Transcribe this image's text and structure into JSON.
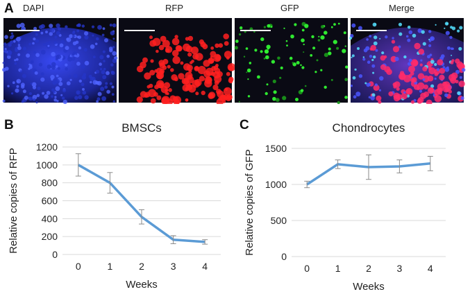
{
  "figure": {
    "panel_labels": [
      "A",
      "B",
      "C"
    ],
    "microscopy": {
      "channels": [
        {
          "label": "DAPI",
          "color": "#2a3dff"
        },
        {
          "label": "RFP",
          "color": "#ff1e1e"
        },
        {
          "label": "GFP",
          "color": "#22e022"
        },
        {
          "label": "Merge",
          "color": "#b04dd6"
        }
      ],
      "background": "#0a0a14"
    }
  },
  "chart_data": [
    {
      "type": "line",
      "title": "BMSCs",
      "xlabel": "Weeks",
      "ylabel": "Relative copies of RFP",
      "x": [
        0,
        1,
        2,
        3,
        4
      ],
      "series": [
        {
          "values": [
            1000,
            800,
            420,
            165,
            140
          ],
          "error": [
            125,
            115,
            80,
            45,
            25
          ]
        }
      ],
      "ylim": [
        0,
        1200
      ],
      "yticks": [
        0,
        200,
        400,
        600,
        800,
        1000,
        1200
      ],
      "grid": true,
      "line_color": "#5b9bd5"
    },
    {
      "type": "line",
      "title": "Chondrocytes",
      "xlabel": "Weeks",
      "ylabel": "Relative copies of GFP",
      "x": [
        0,
        1,
        2,
        3,
        4
      ],
      "series": [
        {
          "values": [
            1000,
            1280,
            1240,
            1250,
            1290
          ],
          "error": [
            45,
            60,
            170,
            90,
            100
          ]
        }
      ],
      "ylim": [
        0,
        1500
      ],
      "yticks": [
        0,
        500,
        1000,
        1500
      ],
      "grid": true,
      "line_color": "#5b9bd5"
    }
  ]
}
